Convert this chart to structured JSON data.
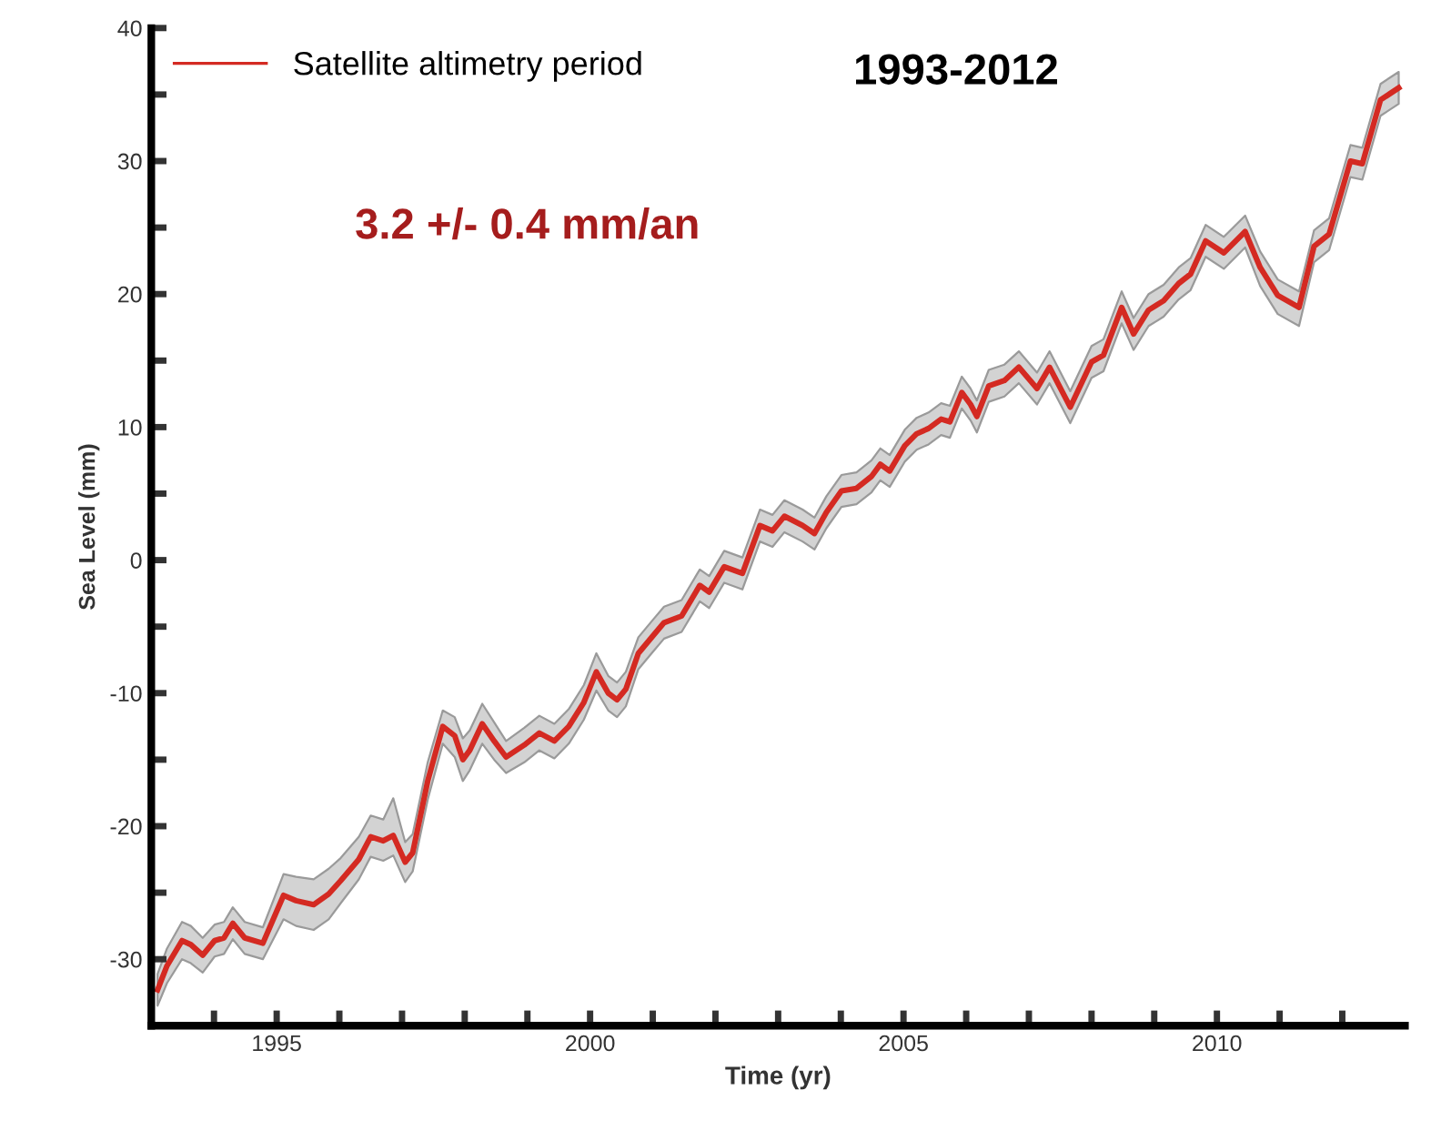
{
  "chart_data": {
    "type": "line",
    "title": "1993-2012",
    "xlabel": "Time (yr)",
    "ylabel": "Sea Level (mm)",
    "annotations": [
      "3.2 +/- 0.4 mm/an"
    ],
    "xlim": [
      1993,
      2013
    ],
    "ylim": [
      -35,
      40
    ],
    "xticks": [
      {
        "value": 1994,
        "label": null
      },
      {
        "value": 1995,
        "label": "1995"
      },
      {
        "value": 1996,
        "label": null
      },
      {
        "value": 1997,
        "label": null
      },
      {
        "value": 1998,
        "label": null
      },
      {
        "value": 1999,
        "label": null
      },
      {
        "value": 2000,
        "label": "2000"
      },
      {
        "value": 2001,
        "label": null
      },
      {
        "value": 2002,
        "label": null
      },
      {
        "value": 2003,
        "label": null
      },
      {
        "value": 2004,
        "label": null
      },
      {
        "value": 2005,
        "label": "2005"
      },
      {
        "value": 2006,
        "label": null
      },
      {
        "value": 2007,
        "label": null
      },
      {
        "value": 2008,
        "label": null
      },
      {
        "value": 2009,
        "label": null
      },
      {
        "value": 2010,
        "label": "2010"
      },
      {
        "value": 2011,
        "label": null
      },
      {
        "value": 2012,
        "label": null
      }
    ],
    "yticks": [
      {
        "value": -30,
        "label": "-30"
      },
      {
        "value": -25,
        "label": null
      },
      {
        "value": -20,
        "label": "-20"
      },
      {
        "value": -15,
        "label": null
      },
      {
        "value": -10,
        "label": "-10"
      },
      {
        "value": -5,
        "label": null
      },
      0,
      {
        "value": 5,
        "label": null
      },
      10,
      {
        "value": 15,
        "label": null
      },
      20,
      {
        "value": 25,
        "label": null
      },
      30,
      {
        "value": 35,
        "label": null
      },
      40
    ],
    "grid": false,
    "legend": "top left",
    "marker": "none",
    "line_style": "solid",
    "series": [
      {
        "name": "Satellite altimetry period",
        "color": "#d42a22",
        "x": [
          1993.1,
          1993.25,
          1993.49,
          1993.63,
          1993.82,
          1994.01,
          1994.16,
          1994.3,
          1994.49,
          1994.78,
          1995.11,
          1995.31,
          1995.59,
          1995.83,
          1996.02,
          1996.31,
          1996.5,
          1996.7,
          1996.86,
          1997.05,
          1997.17,
          1997.41,
          1997.65,
          1997.84,
          1997.97,
          1998.08,
          1998.28,
          1998.47,
          1998.66,
          1998.95,
          1999.19,
          1999.43,
          1999.66,
          1999.9,
          2000.1,
          2000.29,
          2000.43,
          2000.57,
          2000.77,
          2001.0,
          2001.18,
          2001.46,
          2001.75,
          2001.9,
          2002.14,
          2002.43,
          2002.71,
          2002.91,
          2003.1,
          2003.39,
          2003.58,
          2003.77,
          2004.01,
          2004.25,
          2004.49,
          2004.63,
          2004.78,
          2005.02,
          2005.21,
          2005.4,
          2005.6,
          2005.74,
          2005.93,
          2006.07,
          2006.17,
          2006.36,
          2006.61,
          2006.84,
          2007.13,
          2007.33,
          2007.66,
          2008.0,
          2008.19,
          2008.48,
          2008.67,
          2008.91,
          2009.15,
          2009.39,
          2009.58,
          2009.82,
          2010.11,
          2010.45,
          2010.69,
          2010.97,
          2011.31,
          2011.55,
          2011.79,
          2012.13,
          2012.32,
          2012.61,
          2012.9
        ],
        "values": [
          -32.3,
          -30.5,
          -28.6,
          -28.9,
          -29.7,
          -28.6,
          -28.4,
          -27.3,
          -28.4,
          -28.8,
          -25.2,
          -25.6,
          -25.9,
          -25.1,
          -24.1,
          -22.5,
          -20.8,
          -21.1,
          -20.7,
          -22.7,
          -22.0,
          -16.6,
          -12.5,
          -13.2,
          -15.0,
          -14.3,
          -12.3,
          -13.6,
          -14.8,
          -13.9,
          -13.0,
          -13.6,
          -12.5,
          -10.7,
          -8.4,
          -10.0,
          -10.5,
          -9.7,
          -7.0,
          -5.7,
          -4.7,
          -4.2,
          -1.9,
          -2.4,
          -0.5,
          -1.0,
          2.6,
          2.2,
          3.3,
          2.6,
          2.0,
          3.6,
          5.2,
          5.4,
          6.3,
          7.2,
          6.7,
          8.6,
          9.5,
          9.9,
          10.6,
          10.4,
          12.6,
          11.7,
          10.8,
          13.1,
          13.5,
          14.5,
          12.9,
          14.5,
          11.5,
          14.9,
          15.4,
          19.0,
          17.0,
          18.8,
          19.5,
          20.8,
          21.5,
          24.0,
          23.1,
          24.7,
          22.0,
          19.9,
          19.0,
          23.6,
          24.5,
          30.0,
          29.8,
          34.6,
          35.5
        ],
        "lower": [
          -33.5,
          -31.8,
          -30,
          -30.3,
          -31,
          -29.8,
          -29.6,
          -28.5,
          -29.6,
          -30,
          -27,
          -27.5,
          -27.8,
          -27,
          -25.8,
          -24,
          -22.3,
          -22.6,
          -22.2,
          -24.2,
          -23.4,
          -18,
          -13.8,
          -14.8,
          -16.6,
          -15.8,
          -13.8,
          -15,
          -16,
          -15.2,
          -14.3,
          -14.9,
          -13.8,
          -12,
          -9.8,
          -11.3,
          -11.8,
          -11,
          -8.2,
          -6.9,
          -5.9,
          -5.4,
          -3.1,
          -3.6,
          -1.7,
          -2.2,
          1.4,
          1,
          2.1,
          1.4,
          0.8,
          2.4,
          4,
          4.2,
          5.1,
          6,
          5.5,
          7.4,
          8.3,
          8.7,
          9.4,
          9.2,
          11.4,
          10.5,
          9.6,
          11.9,
          12.3,
          13.3,
          11.7,
          13.3,
          10.3,
          13.7,
          14.2,
          17.8,
          15.8,
          17.6,
          18.3,
          19.6,
          20.3,
          22.8,
          21.9,
          23.5,
          20.6,
          18.5,
          17.6,
          22.4,
          23.3,
          28.8,
          28.6,
          33.4,
          34.3
        ],
        "upper": [
          -31.1,
          -29.2,
          -27.2,
          -27.5,
          -28.4,
          -27.4,
          -27.2,
          -26.1,
          -27.2,
          -27.6,
          -23.6,
          -23.8,
          -24,
          -23.2,
          -22.4,
          -20.8,
          -19.2,
          -19.5,
          -17.9,
          -21.2,
          -20.6,
          -15.2,
          -11.3,
          -11.8,
          -13.4,
          -12.8,
          -10.8,
          -12.2,
          -13.6,
          -12.6,
          -11.7,
          -12.3,
          -11.2,
          -9.4,
          -7,
          -8.7,
          -9.2,
          -8.4,
          -5.8,
          -4.5,
          -3.5,
          -3,
          -0.7,
          -1.2,
          0.7,
          0.2,
          3.8,
          3.4,
          4.5,
          3.8,
          3.2,
          4.8,
          6.4,
          6.6,
          7.5,
          8.4,
          7.9,
          9.8,
          10.7,
          11.1,
          11.8,
          11.6,
          13.8,
          12.9,
          12,
          14.3,
          14.7,
          15.7,
          14.1,
          15.7,
          12.7,
          16.1,
          16.6,
          20.2,
          18.2,
          20,
          20.7,
          22,
          22.7,
          25.2,
          24.3,
          25.9,
          23.2,
          21.1,
          20.2,
          24.8,
          25.7,
          31.2,
          31,
          35.8,
          36.7
        ]
      }
    ]
  }
}
